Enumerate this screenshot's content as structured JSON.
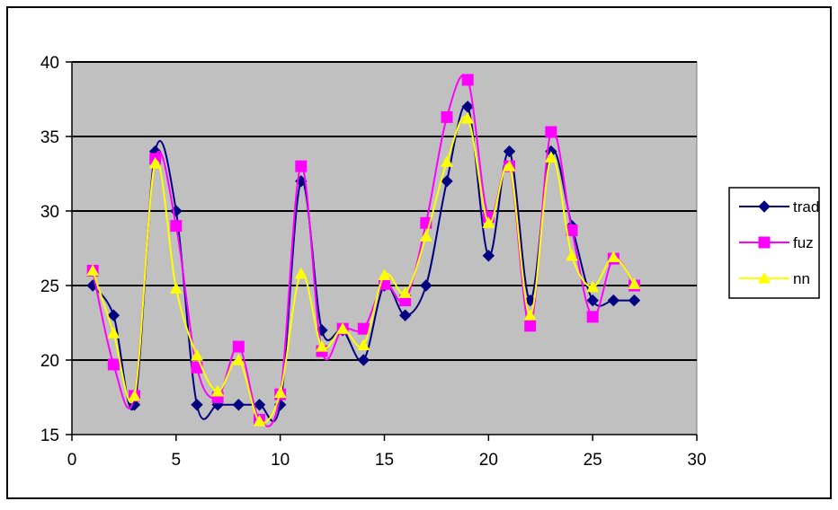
{
  "chart_data": {
    "type": "line",
    "title": "",
    "xlabel": "",
    "ylabel": "",
    "xlim": [
      0,
      30
    ],
    "ylim": [
      15,
      40
    ],
    "x_ticks": [
      0,
      5,
      10,
      15,
      20,
      25,
      30
    ],
    "y_ticks": [
      15,
      20,
      25,
      30,
      35,
      40
    ],
    "grid": "horizontal",
    "legend_position": "right",
    "colors": {
      "plot_background": "#c0c0c0",
      "grid": "#000000"
    },
    "x": [
      1,
      2,
      3,
      4,
      5,
      6,
      7,
      8,
      9,
      10,
      11,
      12,
      13,
      14,
      15,
      16,
      17,
      18,
      19,
      20,
      21,
      22,
      23,
      24,
      25,
      26,
      27
    ],
    "series": [
      {
        "name": "trad",
        "color": "#000080",
        "marker": "diamond",
        "values": [
          25,
          23,
          17,
          34,
          30,
          17,
          17,
          17,
          17,
          17,
          32,
          22,
          22,
          20,
          25,
          23,
          25,
          32,
          37,
          27,
          34,
          24,
          34,
          29,
          24,
          24,
          24
        ]
      },
      {
        "name": "fuz",
        "color": "#ff00ff",
        "marker": "square",
        "values": [
          26,
          19.7,
          17.6,
          33.5,
          29,
          19.5,
          17.5,
          20.9,
          16,
          17.7,
          33,
          20.6,
          22.1,
          22.1,
          25.1,
          24,
          29.2,
          36.3,
          38.8,
          29.6,
          33,
          22.3,
          35.3,
          28.7,
          22.9,
          26.8,
          25
        ]
      },
      {
        "name": "nn",
        "color": "#ffff00",
        "marker": "triangle",
        "values": [
          26,
          21.8,
          17.6,
          33.2,
          24.8,
          20.3,
          17.9,
          20,
          15.9,
          17.8,
          25.8,
          20.9,
          22.1,
          21,
          25.7,
          24.5,
          28.3,
          33.3,
          36.2,
          29.2,
          33,
          23,
          33.6,
          27,
          24.9,
          26.9,
          25.1
        ]
      }
    ]
  }
}
